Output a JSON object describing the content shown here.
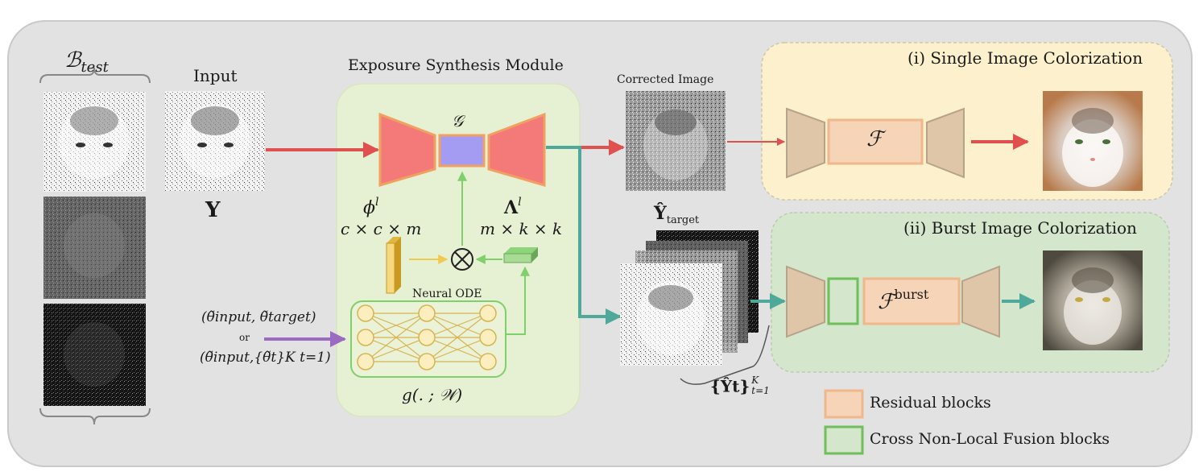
{
  "b_test": {
    "symbol": "ℬ",
    "subscript": "test"
  },
  "input": {
    "label": "Input",
    "symbol": "Y"
  },
  "esm": {
    "title": "Exposure Synthesis Module",
    "generator": "𝒢",
    "phi": {
      "symbol": "ϕ",
      "sup": "l",
      "dims": "c × c × m"
    },
    "lambda": {
      "symbol": "Λ",
      "sup": "l",
      "dims": "m × k × k"
    },
    "ode_title": "Neural ODE",
    "ode_func": "g(. ; 𝒲)",
    "params_line1": "(θ̃input, θ̃target)",
    "params_or": "or",
    "params_line2": "(θ̃input,{θ̃t}K t=1)"
  },
  "corrected_image": "Corrected Image",
  "y_target": {
    "symbol": "Ŷ",
    "subscript": "target"
  },
  "y_set": {
    "text": "{Ŷt}",
    "sup": "K",
    "sub": "t=1"
  },
  "single": {
    "title": "(i) Single Image Colorization",
    "f": "ℱ"
  },
  "burst": {
    "title": "(ii) Burst Image Colorization",
    "f": "ℱ",
    "f_sup": "burst"
  },
  "legend": {
    "residual": "Residual blocks",
    "fusion": "Cross Non-Local Fusion blocks"
  },
  "colors": {
    "panel": "#e2e2e2",
    "esm_bg": "#e6f0d2",
    "single_bg": "#fdf1cd",
    "burst_bg": "#d4e6cb",
    "encoder": "#f47a7a",
    "generator": "#a49cf3",
    "residual": "#f5d4b8",
    "decoder_brown": "#dfc6a8",
    "fusion_border": "#6fbf5a",
    "red_arrow": "#e0504f",
    "teal_arrow": "#4ea99a",
    "purple_arrow": "#9a6bc0"
  }
}
